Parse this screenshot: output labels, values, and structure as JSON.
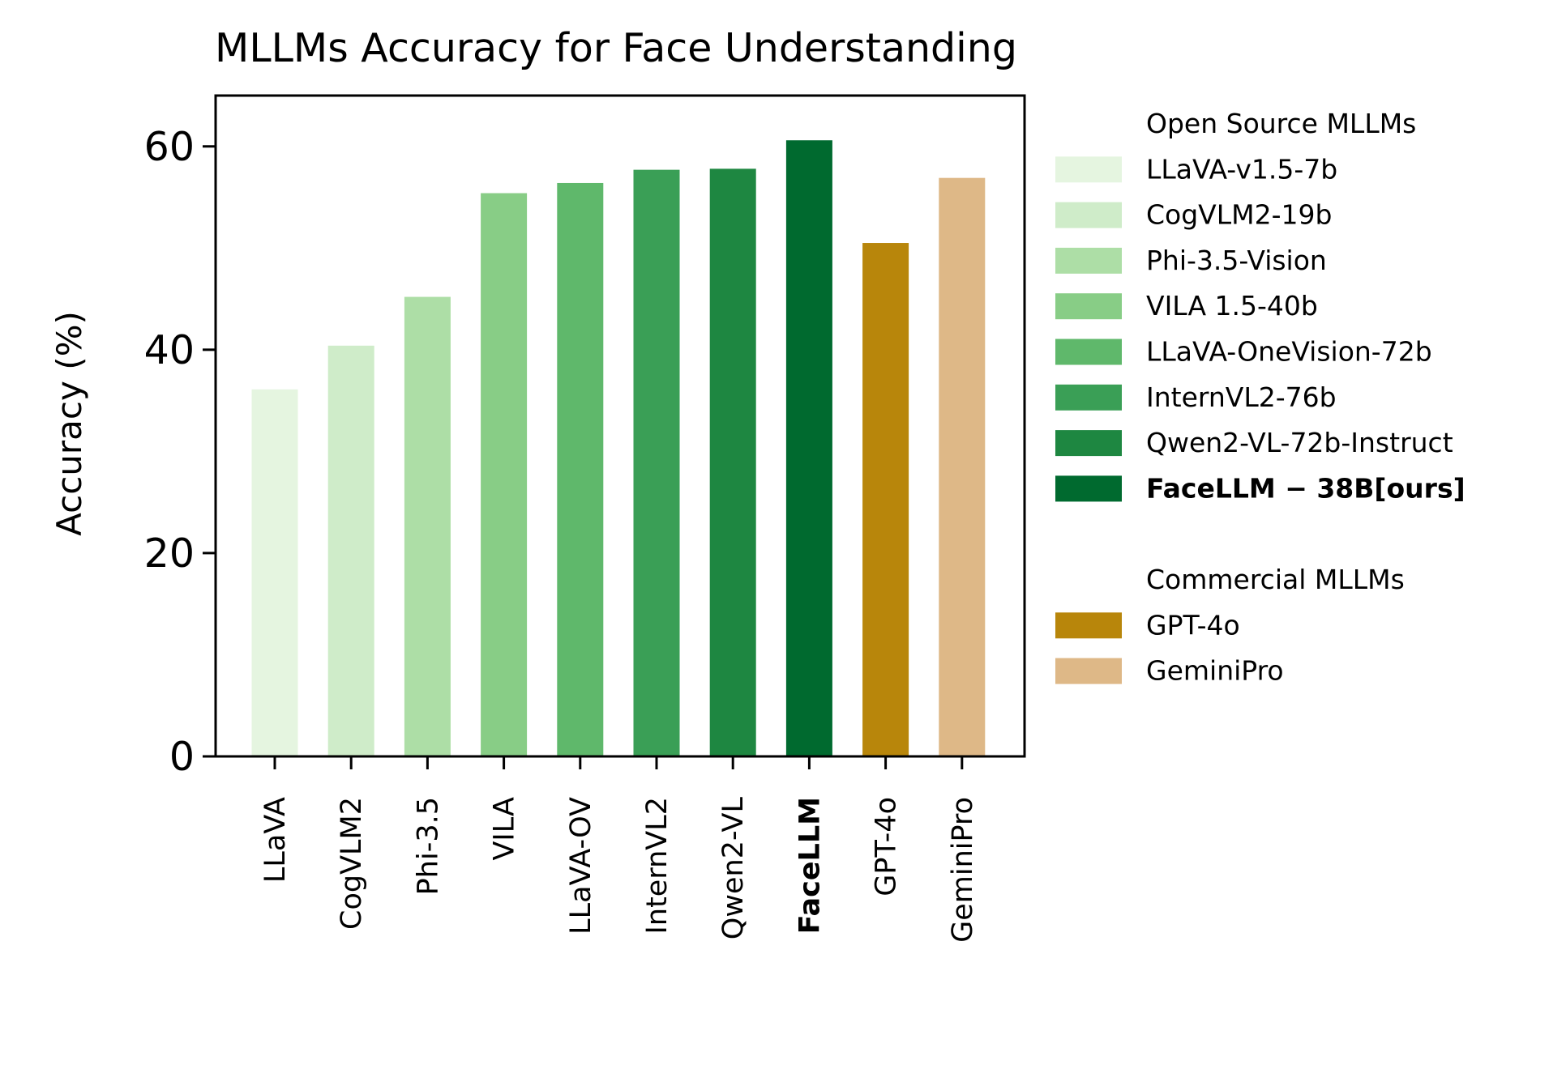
{
  "chart_data": {
    "type": "bar",
    "title": "MLLMs Accuracy for Face Understanding",
    "xlabel": "",
    "ylabel": "Accuracy (%)",
    "ylim": [
      0,
      65
    ],
    "yticks": [
      0,
      20,
      40,
      60
    ],
    "grid": false,
    "categories": [
      "LLaVA",
      "CogVLM2",
      "Phi-3.5",
      "VILA",
      "LLaVA-OV",
      "InternVL2",
      "Qwen2-VL",
      "FaceLLM",
      "GPT-4o",
      "GeminiPro"
    ],
    "values": [
      36.1,
      40.4,
      45.2,
      55.4,
      56.4,
      57.7,
      57.8,
      60.6,
      50.5,
      56.9
    ],
    "bar_colors": [
      "#e5f5e0",
      "#cfecc9",
      "#addea6",
      "#88cd86",
      "#5fb86b",
      "#3a9f56",
      "#1e8741",
      "#006a2f",
      "#b8860b",
      "#deb887"
    ],
    "bold_categories": [
      "FaceLLM"
    ],
    "legend": {
      "placement": "right",
      "groups": [
        {
          "header": "Open Source MLLMs",
          "entries": [
            {
              "label": "LLaVA-v1.5-7b",
              "color": "#e5f5e0"
            },
            {
              "label": "CogVLM2-19b",
              "color": "#cfecc9"
            },
            {
              "label": "Phi-3.5-Vision",
              "color": "#addea6"
            },
            {
              "label": "VILA 1.5-40b",
              "color": "#88cd86"
            },
            {
              "label": "LLaVA-OneVision-72b",
              "color": "#5fb86b"
            },
            {
              "label": "InternVL2-76b",
              "color": "#3a9f56"
            },
            {
              "label": "Qwen2-VL-72b-Instruct",
              "color": "#1e8741"
            },
            {
              "label": "FaceLLM − 38B[ours]",
              "color": "#006a2f",
              "bold": true
            }
          ]
        },
        {
          "header": "Commercial MLLMs",
          "entries": [
            {
              "label": "GPT-4o",
              "color": "#b8860b"
            },
            {
              "label": "GeminiPro",
              "color": "#deb887"
            }
          ]
        }
      ]
    }
  }
}
